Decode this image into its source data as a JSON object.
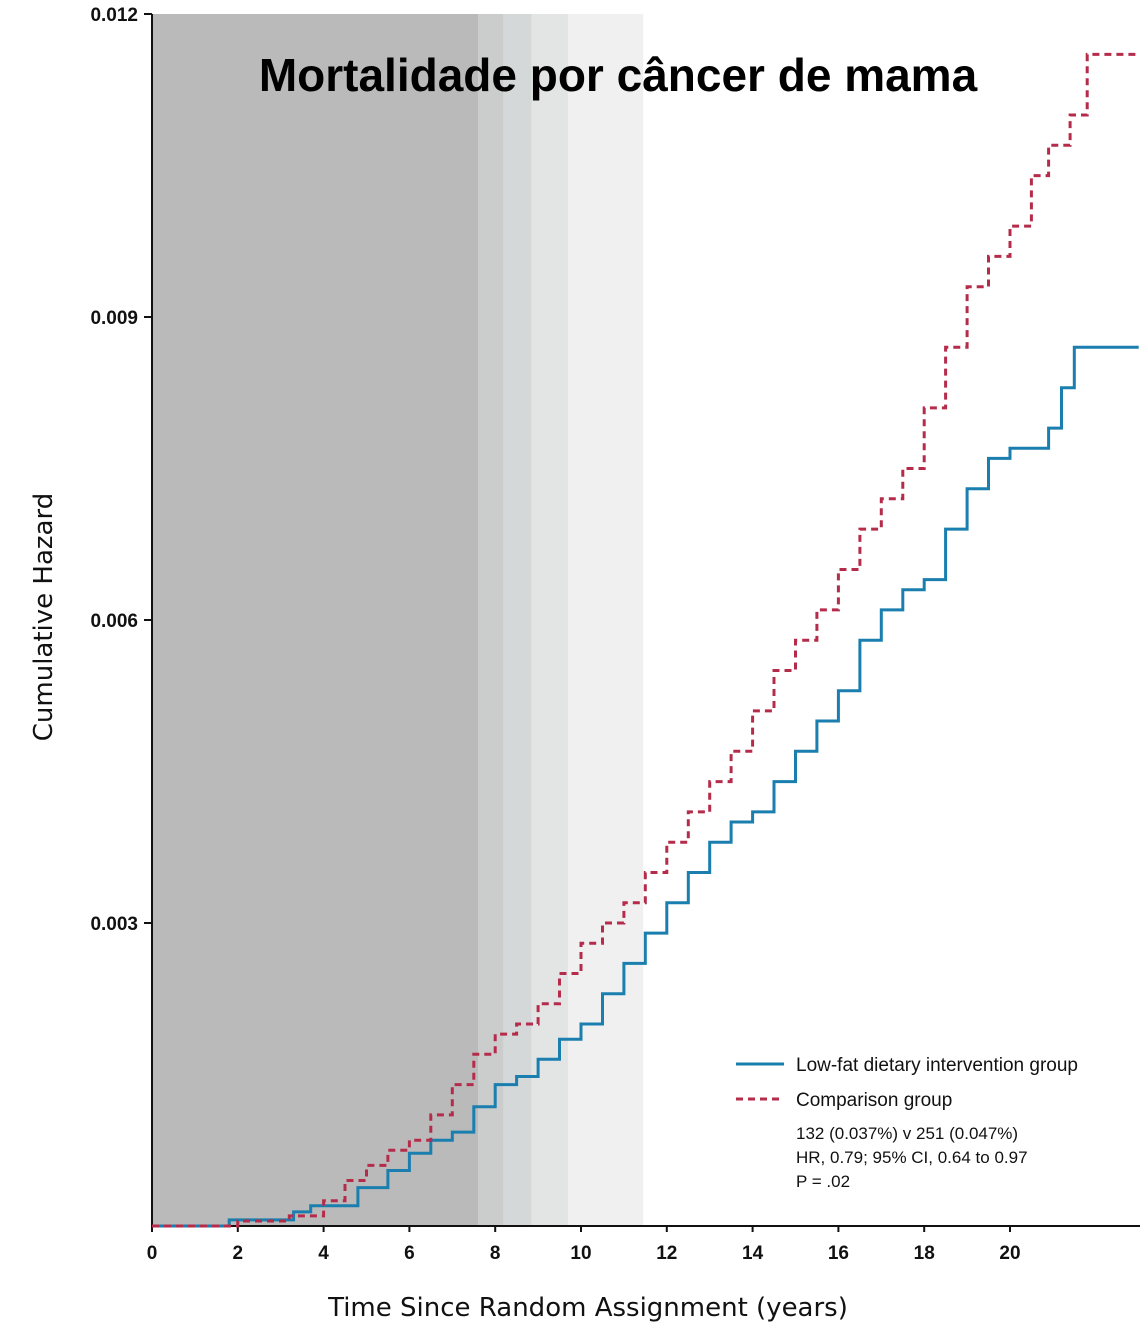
{
  "chart_data": {
    "type": "line",
    "title": "Mortalidade por câncer de mama",
    "xlabel": "Time Since Random Assignment (years)",
    "ylabel": "Cumulative Hazard",
    "xlim": [
      0,
      23
    ],
    "ylim": [
      0.0,
      0.012
    ],
    "x_ticks": [
      "0",
      "2",
      "4",
      "6",
      "8",
      "10",
      "12",
      "14",
      "16",
      "18",
      "20"
    ],
    "x_tick_values": [
      0,
      2,
      4,
      6,
      8,
      10,
      12,
      14,
      16,
      18,
      20
    ],
    "y_ticks": [
      "0.003",
      "0.006",
      "0.009",
      "0.012"
    ],
    "y_tick_values": [
      0.003,
      0.006,
      0.009,
      0.012
    ],
    "shaded_regions": [
      {
        "x0": 0,
        "x1": 7.6,
        "color": "#bababa"
      },
      {
        "x0": 7.6,
        "x1": 8.2,
        "color": "#cbcdcd"
      },
      {
        "x0": 8.2,
        "x1": 8.85,
        "color": "#d5d8d8"
      },
      {
        "x0": 8.85,
        "x1": 9.7,
        "color": "#e3e5e5"
      },
      {
        "x0": 9.7,
        "x1": 11.45,
        "color": "#f0f0f0"
      }
    ],
    "series": [
      {
        "name": "Low-fat dietary intervention group",
        "color": "#1a7fae",
        "style": "solid",
        "x": [
          0,
          1.8,
          3.3,
          3.7,
          4.8,
          5.5,
          6.0,
          6.5,
          7.0,
          7.5,
          8.0,
          8.5,
          9.0,
          9.5,
          10.0,
          10.5,
          11.0,
          11.5,
          12.0,
          12.5,
          13.0,
          13.5,
          14.0,
          14.5,
          15.0,
          15.5,
          16.0,
          16.5,
          17.0,
          17.5,
          18.0,
          18.5,
          19.0,
          19.5,
          20.0,
          20.5,
          20.9,
          21.2,
          21.5,
          23.0
        ],
        "y": [
          0.0,
          6e-05,
          0.00014,
          0.0002,
          0.00038,
          0.00055,
          0.00072,
          0.00085,
          0.00093,
          0.00118,
          0.0014,
          0.00148,
          0.00165,
          0.00185,
          0.002,
          0.0023,
          0.0026,
          0.0029,
          0.0032,
          0.0035,
          0.0038,
          0.004,
          0.0041,
          0.0044,
          0.0047,
          0.005,
          0.0053,
          0.0058,
          0.0061,
          0.0063,
          0.0064,
          0.0069,
          0.0073,
          0.0076,
          0.0077,
          0.0077,
          0.0079,
          0.0083,
          0.0087,
          0.0087
        ]
      },
      {
        "name": "Comparison group",
        "color": "#b52c4b",
        "style": "dashed",
        "x": [
          0,
          2.0,
          3.2,
          4.0,
          4.5,
          5.0,
          5.5,
          6.0,
          6.5,
          7.0,
          7.5,
          8.0,
          8.5,
          9.0,
          9.5,
          10.0,
          10.5,
          11.0,
          11.5,
          12.0,
          12.5,
          13.0,
          13.5,
          14.0,
          14.5,
          15.0,
          15.5,
          16.0,
          16.5,
          17.0,
          17.5,
          18.0,
          18.5,
          19.0,
          19.5,
          20.0,
          20.5,
          20.9,
          21.4,
          21.8,
          23.0
        ],
        "y": [
          0.0,
          5e-05,
          0.0001,
          0.00025,
          0.00045,
          0.0006,
          0.00075,
          0.00085,
          0.0011,
          0.0014,
          0.0017,
          0.0019,
          0.002,
          0.0022,
          0.0025,
          0.0028,
          0.003,
          0.0032,
          0.0035,
          0.0038,
          0.0041,
          0.0044,
          0.0047,
          0.0051,
          0.0055,
          0.0058,
          0.0061,
          0.0065,
          0.0069,
          0.0072,
          0.0075,
          0.0081,
          0.0087,
          0.0093,
          0.0096,
          0.0099,
          0.0104,
          0.0107,
          0.011,
          0.0116,
          0.0116
        ]
      }
    ],
    "legend": {
      "placement": "bottom-right",
      "entries": [
        "Low-fat dietary intervention group",
        "Comparison group"
      ]
    },
    "annotations": [
      "132 (0.037%) v 251 (0.047%)",
      "HR, 0.79; 95% CI, 0.64 to 0.97",
      "P = .02"
    ]
  }
}
